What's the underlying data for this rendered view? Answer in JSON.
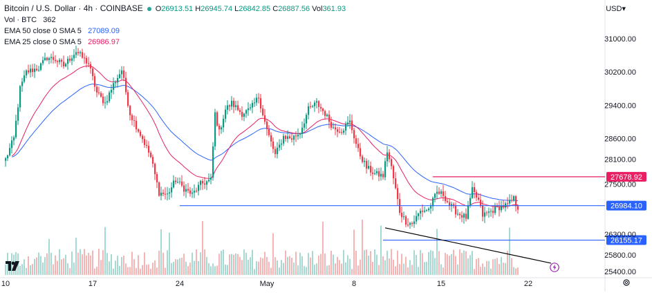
{
  "header": {
    "title": "Bitcoin / U.S. Dollar · 4h · COINBASE",
    "open_label": "O",
    "open": "26913.51",
    "high_label": "H",
    "high": "26945.74",
    "low_label": "L",
    "low": "26842.85",
    "close_label": "C",
    "close": "26887.56",
    "vol_label": "Vol",
    "vol": "361.93",
    "vol_indicator_label": "Vol · BTC",
    "vol_indicator_value": "362",
    "ema50_label": "EMA 50 close 0 SMA 5",
    "ema50_value": "27089.09",
    "ema25_label": "EMA 25 close 0 SMA 5",
    "ema25_value": "26986.97",
    "currency": "USD"
  },
  "colors": {
    "up": "#089981",
    "down": "#f23645",
    "vol_up": "#a6d9d2",
    "vol_down": "#f7b4b4",
    "ema50": "#2962ff",
    "ema25": "#e91e63",
    "support": "#2962ff",
    "resistance": "#e91e63",
    "trendline": "#000000"
  },
  "icons": {
    "logo": "tradingview-logo",
    "replay": "lightning-icon",
    "settings": "gear-icon"
  },
  "chart_data": {
    "type": "candlestick",
    "interval": "4h",
    "ylim": [
      25250,
      31600
    ],
    "y_ticks": [
      31000,
      30200,
      29400,
      28600,
      28100,
      27500,
      26300,
      25800,
      25400
    ],
    "y_tick_labels": [
      "31000.00",
      "30200.00",
      "29400.00",
      "28600.00",
      "28100.00",
      "27500.00",
      "26300.00",
      "25800.00",
      "25400.00"
    ],
    "x_labels": [
      "10",
      "17",
      "24",
      "May",
      "8",
      "15",
      "22"
    ],
    "x_label_bar_index": [
      0,
      42,
      84,
      126,
      168,
      210,
      252
    ],
    "horizontal_levels": [
      {
        "label": "27678.92",
        "value": 27678.92,
        "color": "#e91e63",
        "from_bar": 206
      },
      {
        "label": "26984.10",
        "value": 26984.1,
        "color": "#2962ff",
        "from_bar": 84
      },
      {
        "label": "26155.17",
        "value": 26155.17,
        "color": "#2962ff",
        "from_bar": 182
      }
    ],
    "trendline": {
      "from": [
        183,
        26450
      ],
      "to": [
        263,
        25600
      ]
    },
    "price_anchors": [
      [
        0,
        28100
      ],
      [
        4,
        28600
      ],
      [
        7,
        29800
      ],
      [
        10,
        30200
      ],
      [
        16,
        30300
      ],
      [
        20,
        30550
      ],
      [
        24,
        30500
      ],
      [
        28,
        30350
      ],
      [
        34,
        30700
      ],
      [
        40,
        30400
      ],
      [
        44,
        29700
      ],
      [
        48,
        29450
      ],
      [
        52,
        29900
      ],
      [
        56,
        30250
      ],
      [
        60,
        29200
      ],
      [
        66,
        28600
      ],
      [
        70,
        28150
      ],
      [
        74,
        27300
      ],
      [
        78,
        27250
      ],
      [
        82,
        27600
      ],
      [
        86,
        27400
      ],
      [
        90,
        27250
      ],
      [
        94,
        27500
      ],
      [
        99,
        27600
      ],
      [
        101,
        29200
      ],
      [
        103,
        28750
      ],
      [
        106,
        29300
      ],
      [
        109,
        29450
      ],
      [
        114,
        29200
      ],
      [
        118,
        29300
      ],
      [
        122,
        29600
      ],
      [
        126,
        28800
      ],
      [
        130,
        28200
      ],
      [
        134,
        28650
      ],
      [
        138,
        28600
      ],
      [
        142,
        28750
      ],
      [
        146,
        29300
      ],
      [
        150,
        29450
      ],
      [
        154,
        29200
      ],
      [
        158,
        28850
      ],
      [
        162,
        28800
      ],
      [
        166,
        29000
      ],
      [
        170,
        28300
      ],
      [
        174,
        27900
      ],
      [
        178,
        27750
      ],
      [
        182,
        27700
      ],
      [
        184,
        28300
      ],
      [
        186,
        27900
      ],
      [
        190,
        26850
      ],
      [
        193,
        26600
      ],
      [
        196,
        26550
      ],
      [
        200,
        26850
      ],
      [
        204,
        26900
      ],
      [
        208,
        27300
      ],
      [
        211,
        27250
      ],
      [
        214,
        27000
      ],
      [
        218,
        26800
      ],
      [
        222,
        26700
      ],
      [
        225,
        27350
      ],
      [
        228,
        27100
      ],
      [
        230,
        26750
      ],
      [
        234,
        26850
      ],
      [
        238,
        26950
      ],
      [
        242,
        27000
      ],
      [
        245,
        27150
      ],
      [
        247,
        26890
      ]
    ],
    "volume_note": "volume histogram drawn in lower pane; scale in BTC, latest 362"
  }
}
